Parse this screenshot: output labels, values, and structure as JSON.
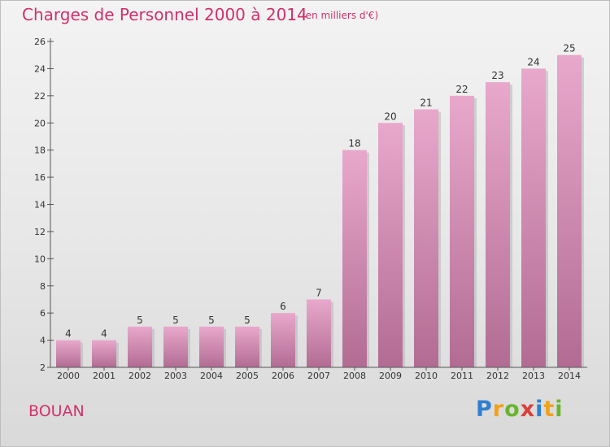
{
  "header": {
    "title": "Charges de Personnel 2000 à 2014",
    "subtitle": "(en milliers d'€)"
  },
  "footer": {
    "place": "BOUAN",
    "logo_text": "Proxiti",
    "logo_colors": [
      "#2f7fd0",
      "#f0a21a",
      "#69b62e",
      "#d8413c"
    ]
  },
  "colors": {
    "bar_top": "#e8a8cc",
    "bar_bottom": "#b26c93",
    "accent": "#d0316b"
  },
  "chart_data": {
    "type": "bar",
    "title": "Charges de Personnel 2000 à 2014",
    "subtitle": "(en milliers d'€)",
    "xlabel": "",
    "ylabel": "",
    "categories": [
      "2000",
      "2001",
      "2002",
      "2003",
      "2004",
      "2005",
      "2006",
      "2007",
      "2008",
      "2009",
      "2010",
      "2011",
      "2012",
      "2013",
      "2014"
    ],
    "values": [
      4,
      4,
      5,
      5,
      5,
      5,
      6,
      7,
      18,
      20,
      21,
      22,
      23,
      24,
      25
    ],
    "data_labels": [
      "4",
      "4",
      "5",
      "5",
      "5",
      "5",
      "6",
      "7",
      "18",
      "20",
      "21",
      "22",
      "23",
      "24",
      "25"
    ],
    "ylim": [
      2,
      26
    ],
    "yticks": [
      2,
      4,
      6,
      8,
      10,
      12,
      14,
      16,
      18,
      20,
      22,
      24,
      26
    ],
    "grid": false,
    "legend": "none"
  }
}
